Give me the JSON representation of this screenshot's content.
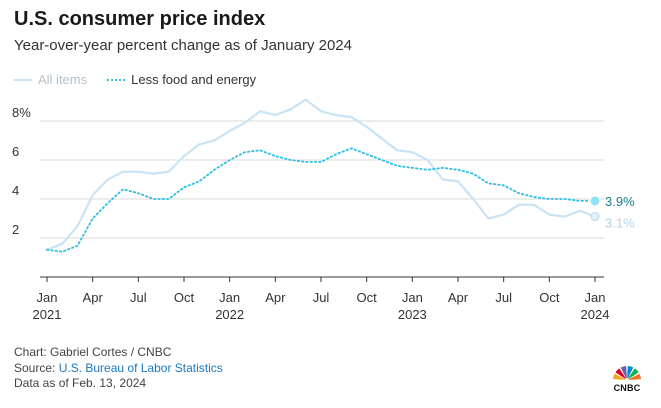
{
  "title": "U.S. consumer price index",
  "subtitle": "Year-over-year percent change as of January 2024",
  "legend": {
    "all_items": "All items",
    "core": "Less food and energy"
  },
  "colors": {
    "all_items": "#c9e3f4",
    "core": "#2bbfe3",
    "core_label": "#17808f",
    "all_label": "#b4d4e6",
    "grid": "#d9d9d9",
    "axis": "#333333"
  },
  "chart_data": {
    "type": "line",
    "x_start": "2021-01",
    "x_end": "2024-01",
    "ylim": [
      0,
      8
    ],
    "y_ticks": [
      {
        "value": 2,
        "label": "2"
      },
      {
        "value": 4,
        "label": "4"
      },
      {
        "value": 6,
        "label": "6"
      },
      {
        "value": 8,
        "label": "8%"
      }
    ],
    "x_ticks": [
      {
        "month": "Jan",
        "year": "2021"
      },
      {
        "month": "Apr",
        "year": ""
      },
      {
        "month": "Jul",
        "year": ""
      },
      {
        "month": "Oct",
        "year": ""
      },
      {
        "month": "Jan",
        "year": "2022"
      },
      {
        "month": "Apr",
        "year": ""
      },
      {
        "month": "Jul",
        "year": ""
      },
      {
        "month": "Oct",
        "year": ""
      },
      {
        "month": "Jan",
        "year": "2023"
      },
      {
        "month": "Apr",
        "year": ""
      },
      {
        "month": "Jul",
        "year": ""
      },
      {
        "month": "Oct",
        "year": ""
      },
      {
        "month": "Jan",
        "year": "2024"
      }
    ],
    "series": [
      {
        "name": "All items",
        "end_label": "3.1%",
        "values": [
          1.4,
          1.7,
          2.6,
          4.2,
          5.0,
          5.4,
          5.4,
          5.3,
          5.4,
          6.2,
          6.8,
          7.0,
          7.5,
          7.9,
          8.5,
          8.3,
          8.6,
          9.1,
          8.5,
          8.3,
          8.2,
          7.7,
          7.1,
          6.5,
          6.4,
          6.0,
          5.0,
          4.9,
          4.0,
          3.0,
          3.2,
          3.7,
          3.7,
          3.2,
          3.1,
          3.4,
          3.1
        ]
      },
      {
        "name": "Less food and energy",
        "end_label": "3.9%",
        "values": [
          1.4,
          1.3,
          1.6,
          3.0,
          3.8,
          4.5,
          4.3,
          4.0,
          4.0,
          4.6,
          4.9,
          5.5,
          6.0,
          6.4,
          6.5,
          6.2,
          6.0,
          5.9,
          5.9,
          6.3,
          6.6,
          6.3,
          6.0,
          5.7,
          5.6,
          5.5,
          5.6,
          5.5,
          5.3,
          4.8,
          4.7,
          4.3,
          4.1,
          4.0,
          4.0,
          3.9,
          3.9
        ]
      }
    ]
  },
  "footer": {
    "credit": "Chart: Gabriel Cortes / CNBC",
    "source_prefix": "Source: ",
    "source_link": "U.S. Bureau of Labor Statistics",
    "data_date": "Data as of Feb. 13, 2024"
  },
  "logo": {
    "text": "CNBC",
    "colors": [
      "#f4a81d",
      "#e4002b",
      "#6460aa",
      "#0089d0",
      "#0db14b",
      "#f37021"
    ]
  }
}
